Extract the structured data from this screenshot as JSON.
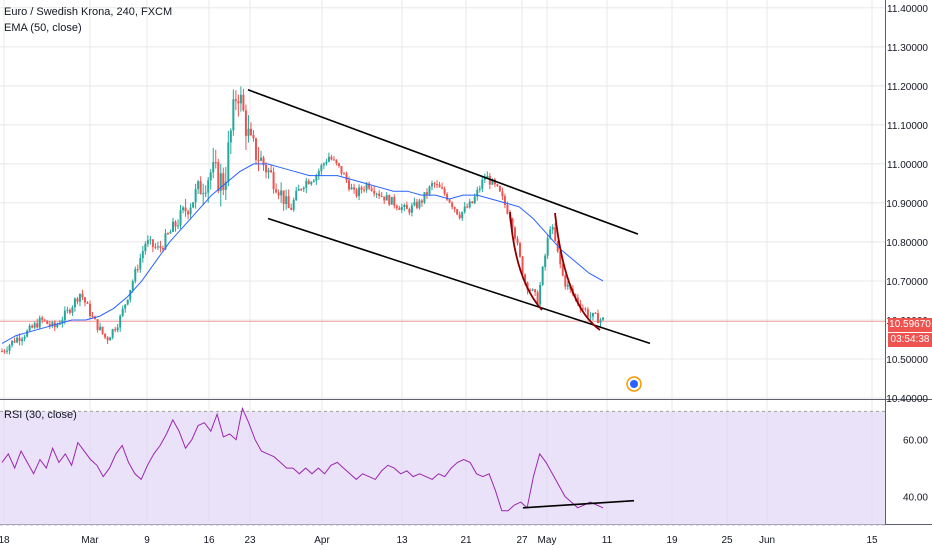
{
  "colors": {
    "up": "#26a69a",
    "down": "#ef5350",
    "ema": "#2962ff",
    "rsi": "#9c27b0",
    "rsi_band": "#e1d6f5",
    "channel": "#000000",
    "curve": "#8b0000",
    "grid": "#e8e8e8",
    "price_line": "#ef5350"
  },
  "legend": {
    "symbol": "Euro / Swedish Krona, 240, FXCM",
    "ema": "EMA (50, close)",
    "rsi": "RSI (30, close)"
  },
  "price_tag": {
    "last": "10.59670",
    "timer": "03:54:38"
  },
  "chart_data": [
    {
      "type": "candlestick",
      "title": "Euro / Swedish Krona, 240, FXCM",
      "indicator": "EMA (50, close)",
      "y_ticks": [
        "11.40000",
        "11.30000",
        "11.20000",
        "11.10000",
        "11.00000",
        "10.90000",
        "10.80000",
        "10.70000",
        "10.60000",
        "10.50000",
        "10.40000"
      ],
      "ylim": [
        10.4,
        11.42
      ],
      "x_ticks": [
        "18",
        "Mar",
        "9",
        "16",
        "23",
        "Apr",
        "13",
        "21",
        "27",
        "May",
        "11",
        "19",
        "25",
        "Jun",
        "15"
      ],
      "last_price": 10.5967,
      "ohlc_anchor_close": [
        10.52,
        10.55,
        10.57,
        10.6,
        10.58,
        10.62,
        10.67,
        10.6,
        10.55,
        10.6,
        10.7,
        10.8,
        10.78,
        10.83,
        10.88,
        10.93,
        10.98,
        10.95,
        11.2,
        11.05,
        11.0,
        10.95,
        10.88,
        10.95,
        10.97,
        11.02,
        10.98,
        10.92,
        10.95,
        10.92,
        10.9,
        10.88,
        10.9,
        10.95,
        10.92,
        10.87,
        10.9,
        10.97,
        10.93,
        10.86,
        10.7,
        10.65,
        10.85,
        10.7,
        10.65,
        10.61,
        10.6
      ],
      "ema_anchor": [
        10.54,
        10.56,
        10.57,
        10.58,
        10.59,
        10.6,
        10.6,
        10.61,
        10.63,
        10.66,
        10.7,
        10.75,
        10.8,
        10.84,
        10.88,
        10.92,
        10.95,
        10.98,
        11.0,
        11.0,
        10.99,
        10.98,
        10.97,
        10.97,
        10.97,
        10.96,
        10.95,
        10.94,
        10.93,
        10.93,
        10.92,
        10.92,
        10.91,
        10.92,
        10.92,
        10.91,
        10.9,
        10.89,
        10.86,
        10.82,
        10.78,
        10.75,
        10.72,
        10.7
      ],
      "channel_upper": [
        [
          11.19,
          "23"
        ],
        [
          10.82,
          "after May"
        ]
      ],
      "channel_lower": [
        [
          10.86,
          "23"
        ],
        [
          10.54,
          "after May"
        ]
      ]
    },
    {
      "type": "line",
      "title": "RSI (30, close)",
      "y_ticks": [
        "60.00",
        "40.00"
      ],
      "ylim": [
        31,
        74
      ],
      "band": [
        30,
        70
      ],
      "values": [
        52,
        55,
        50,
        56,
        52,
        48,
        53,
        50,
        57,
        52,
        55,
        51,
        59,
        56,
        53,
        51,
        47,
        50,
        55,
        58,
        52,
        48,
        46,
        51,
        55,
        58,
        62,
        67,
        63,
        57,
        60,
        65,
        66,
        63,
        69,
        61,
        62,
        60,
        71,
        66,
        60,
        56,
        55,
        54,
        52,
        50,
        50,
        48,
        50,
        48,
        50,
        48,
        51,
        52,
        50,
        48,
        46,
        48,
        47,
        46,
        49,
        51,
        50,
        48,
        49,
        47,
        48,
        47,
        46,
        48,
        47,
        50,
        52,
        53,
        52,
        48,
        47,
        48,
        42,
        35,
        35,
        37,
        38,
        36,
        47,
        55,
        52,
        48,
        44,
        40,
        38,
        36,
        37,
        38,
        37,
        36
      ],
      "trendline": [
        [
          36,
          "late Apr"
        ],
        [
          38.5,
          "after May"
        ]
      ]
    }
  ]
}
